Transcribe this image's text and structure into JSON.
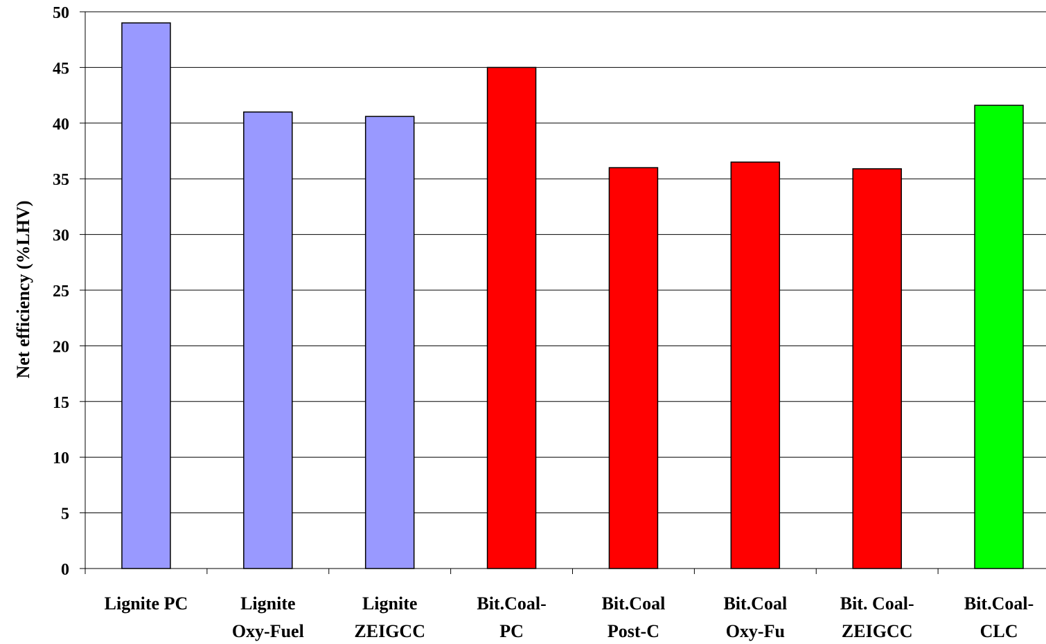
{
  "chart_data": {
    "type": "bar",
    "title": "",
    "xlabel": "",
    "ylabel": "Net efficiency (%LHV)",
    "ylim": [
      0,
      50
    ],
    "yticks": [
      0,
      5,
      10,
      15,
      20,
      25,
      30,
      35,
      40,
      45,
      50
    ],
    "grid": true,
    "legend": "none",
    "categories": [
      [
        "Lignite PC"
      ],
      [
        "Lignite",
        "Oxy-Fuel"
      ],
      [
        "Lignite",
        "ZEIGCC"
      ],
      [
        "Bit.Coal-",
        "PC"
      ],
      [
        "Bit.Coal",
        "Post-C"
      ],
      [
        "Bit.Coal",
        "Oxy-Fu"
      ],
      [
        "Bit. Coal-",
        "ZEIGCC"
      ],
      [
        "Bit.Coal-",
        "CLC"
      ]
    ],
    "values": [
      49.0,
      41.0,
      40.6,
      45.0,
      36.0,
      36.5,
      35.9,
      41.6
    ],
    "bar_colors": [
      "#9999ff",
      "#9999ff",
      "#9999ff",
      "#ff0000",
      "#ff0000",
      "#ff0000",
      "#ff0000",
      "#00ff00"
    ]
  }
}
